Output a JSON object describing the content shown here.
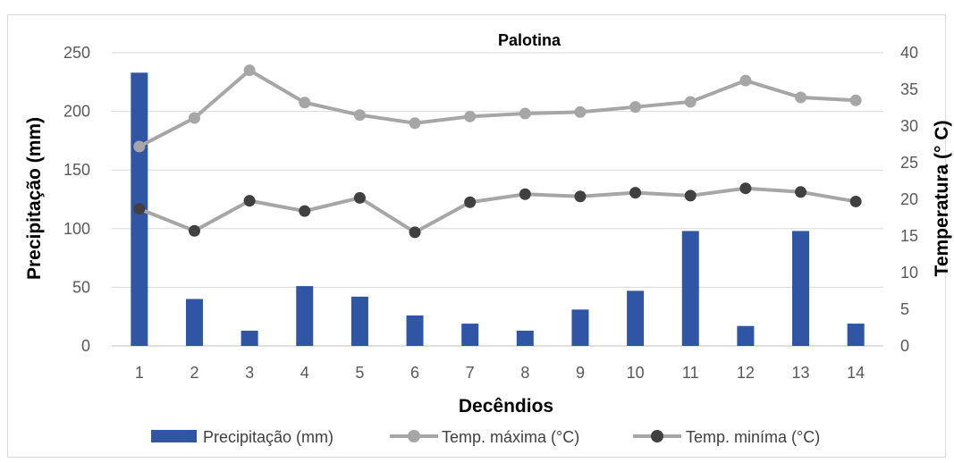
{
  "chart_data": {
    "type": "bar",
    "title": "Palotina",
    "xlabel": "Decêndios",
    "ylabel": "Precipitação (mm)",
    "y2label": "Temperatura (° C)",
    "categories": [
      "1",
      "2",
      "3",
      "4",
      "5",
      "6",
      "7",
      "8",
      "9",
      "10",
      "11",
      "12",
      "13",
      "14"
    ],
    "ylim": [
      0,
      250
    ],
    "y_ticks": [
      "0",
      "50",
      "100",
      "150",
      "200",
      "250"
    ],
    "y2lim": [
      0,
      40
    ],
    "y2_ticks": [
      "0",
      "5",
      "10",
      "15",
      "20",
      "25",
      "30",
      "35",
      "40"
    ],
    "grid": true,
    "legend_position": "bottom",
    "series": [
      {
        "name": "Precipitação (mm)",
        "type": "bar",
        "axis": "left",
        "color": "#2f55a4",
        "values": [
          233,
          40,
          13,
          51,
          42,
          26,
          19,
          13,
          31,
          47,
          98,
          17,
          98,
          19
        ]
      },
      {
        "name": "Temp. máxima (°C)",
        "type": "line",
        "axis": "right",
        "color": "#a6a6a6",
        "marker_color": "#a6a6a6",
        "values": [
          27.2,
          31.1,
          37.6,
          33.2,
          31.5,
          30.4,
          31.3,
          31.7,
          31.9,
          32.6,
          33.3,
          36.2,
          33.9,
          33.5
        ]
      },
      {
        "name": "Temp. miníma (°C)",
        "type": "line",
        "axis": "right",
        "color": "#a6a6a6",
        "marker_color": "#404040",
        "values": [
          18.7,
          15.7,
          19.8,
          18.4,
          20.2,
          15.5,
          19.6,
          20.7,
          20.4,
          20.9,
          20.5,
          21.5,
          21.0,
          19.7
        ]
      }
    ]
  }
}
